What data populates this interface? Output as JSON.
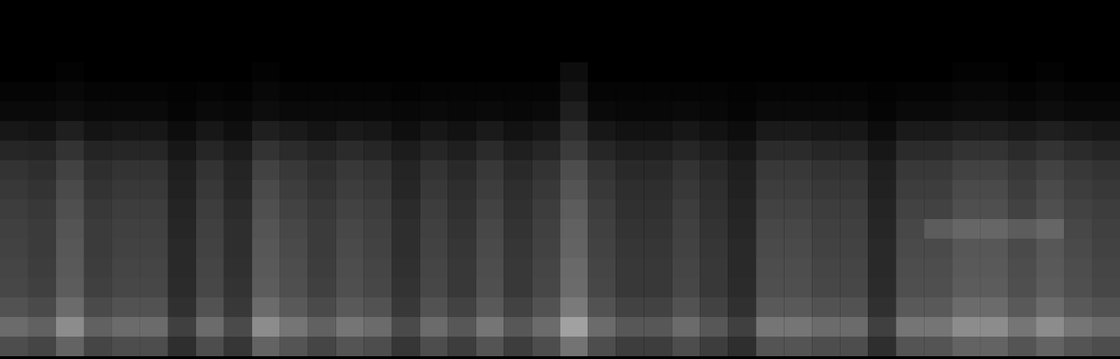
{
  "chart_data": {
    "type": "heatmap",
    "color": "#ffffff",
    "tick_labels": false,
    "zlim": [
      0,
      100
    ],
    "z": [
      [
        0,
        0,
        0,
        0,
        0,
        0,
        0,
        0,
        0,
        0,
        0,
        0,
        0,
        0,
        0,
        0,
        0,
        0,
        0,
        0,
        0,
        0,
        0,
        0,
        0,
        0,
        0,
        0,
        0,
        0,
        0,
        0,
        0,
        0,
        0,
        0,
        0,
        0,
        0,
        0
      ],
      [
        0,
        0,
        0,
        0,
        0,
        0,
        0,
        0,
        0,
        0,
        0,
        0,
        0,
        0,
        0,
        0,
        0,
        0,
        0,
        0,
        0,
        0,
        0,
        0,
        0,
        0,
        0,
        0,
        0,
        0,
        0,
        0,
        0,
        0,
        0,
        0,
        0,
        0,
        0,
        0
      ],
      [
        0,
        0,
        0,
        0,
        0,
        0,
        0,
        0,
        0,
        0,
        0,
        0,
        0,
        0,
        0,
        0,
        0,
        0,
        0,
        0,
        0,
        0,
        0,
        0,
        0,
        0,
        0,
        0,
        0,
        0,
        0,
        0,
        0,
        0,
        0,
        0,
        0,
        0,
        0,
        0
      ],
      [
        0,
        0,
        1,
        0,
        0,
        0,
        0,
        0,
        0,
        1,
        0,
        0,
        0,
        0,
        0,
        0,
        0,
        0,
        0,
        0,
        5,
        0,
        0,
        0,
        0,
        0,
        0,
        0,
        0,
        0,
        0,
        0,
        0,
        0,
        1,
        1,
        0,
        1,
        0,
        0
      ],
      [
        2,
        2,
        3,
        2,
        2,
        2,
        1,
        2,
        1,
        3,
        2,
        2,
        2,
        2,
        1,
        2,
        2,
        2,
        2,
        2,
        8,
        2,
        2,
        2,
        2,
        2,
        1,
        2,
        2,
        2,
        2,
        1,
        2,
        2,
        3,
        3,
        2,
        3,
        2,
        2
      ],
      [
        4,
        4,
        5,
        4,
        4,
        4,
        2,
        4,
        3,
        5,
        4,
        4,
        4,
        4,
        3,
        4,
        3,
        4,
        3,
        4,
        12,
        4,
        3,
        3,
        4,
        3,
        2,
        4,
        4,
        4,
        4,
        2,
        4,
        4,
        5,
        5,
        4,
        5,
        4,
        4
      ],
      [
        9,
        8,
        12,
        8,
        9,
        9,
        5,
        9,
        6,
        12,
        10,
        8,
        10,
        9,
        6,
        9,
        7,
        10,
        7,
        9,
        18,
        9,
        7,
        7,
        9,
        7,
        5,
        10,
        10,
        9,
        9,
        5,
        10,
        10,
        12,
        12,
        10,
        12,
        10,
        9
      ],
      [
        15,
        14,
        20,
        14,
        15,
        15,
        9,
        15,
        11,
        20,
        17,
        14,
        17,
        15,
        11,
        15,
        12,
        17,
        12,
        15,
        23,
        15,
        12,
        12,
        15,
        12,
        9,
        17,
        17,
        15,
        15,
        9,
        17,
        17,
        20,
        20,
        17,
        20,
        17,
        15
      ],
      [
        20,
        18,
        26,
        18,
        20,
        20,
        12,
        20,
        14,
        26,
        22,
        18,
        22,
        20,
        14,
        20,
        16,
        22,
        16,
        20,
        30,
        20,
        16,
        16,
        20,
        16,
        12,
        22,
        22,
        20,
        20,
        12,
        22,
        22,
        26,
        26,
        22,
        26,
        22,
        20
      ],
      [
        22,
        20,
        29,
        20,
        22,
        22,
        13,
        22,
        15,
        29,
        24,
        20,
        24,
        22,
        15,
        22,
        18,
        24,
        18,
        22,
        33,
        22,
        18,
        18,
        22,
        18,
        13,
        24,
        24,
        22,
        22,
        13,
        24,
        24,
        29,
        29,
        24,
        29,
        24,
        22
      ],
      [
        24,
        22,
        31,
        22,
        24,
        24,
        14,
        24,
        17,
        31,
        26,
        22,
        26,
        24,
        17,
        24,
        19,
        26,
        19,
        24,
        36,
        24,
        19,
        19,
        24,
        19,
        14,
        26,
        26,
        24,
        24,
        14,
        26,
        26,
        31,
        31,
        26,
        31,
        26,
        24
      ],
      [
        25,
        23,
        33,
        23,
        25,
        25,
        15,
        25,
        18,
        33,
        28,
        23,
        28,
        25,
        18,
        25,
        20,
        28,
        20,
        25,
        38,
        25,
        20,
        20,
        25,
        20,
        15,
        28,
        28,
        25,
        25,
        15,
        28,
        36,
        40,
        40,
        36,
        40,
        28,
        25
      ],
      [
        26,
        23,
        34,
        23,
        26,
        26,
        16,
        26,
        18,
        34,
        29,
        23,
        29,
        26,
        18,
        26,
        21,
        29,
        21,
        26,
        39,
        26,
        21,
        21,
        26,
        21,
        16,
        29,
        29,
        26,
        26,
        16,
        29,
        29,
        34,
        34,
        29,
        34,
        29,
        26
      ],
      [
        27,
        24,
        35,
        24,
        27,
        27,
        16,
        27,
        19,
        35,
        30,
        24,
        30,
        27,
        19,
        27,
        22,
        30,
        22,
        27,
        41,
        27,
        22,
        22,
        27,
        22,
        16,
        30,
        30,
        27,
        27,
        16,
        30,
        30,
        35,
        35,
        30,
        35,
        30,
        27
      ],
      [
        28,
        25,
        36,
        25,
        28,
        28,
        17,
        28,
        20,
        36,
        31,
        25,
        31,
        28,
        20,
        28,
        22,
        31,
        22,
        28,
        42,
        28,
        22,
        22,
        28,
        22,
        17,
        31,
        31,
        28,
        28,
        17,
        31,
        31,
        36,
        36,
        31,
        36,
        31,
        28
      ],
      [
        32,
        29,
        42,
        29,
        32,
        32,
        19,
        32,
        22,
        42,
        35,
        29,
        35,
        32,
        22,
        32,
        26,
        35,
        26,
        32,
        48,
        32,
        26,
        26,
        32,
        26,
        19,
        35,
        35,
        32,
        32,
        19,
        35,
        35,
        42,
        42,
        35,
        42,
        35,
        32
      ],
      [
        42,
        38,
        55,
        38,
        42,
        42,
        25,
        42,
        29,
        55,
        46,
        38,
        46,
        42,
        29,
        42,
        34,
        46,
        34,
        42,
        63,
        42,
        34,
        34,
        42,
        34,
        25,
        46,
        46,
        42,
        42,
        25,
        46,
        46,
        55,
        55,
        46,
        55,
        46,
        42
      ],
      [
        30,
        27,
        39,
        27,
        30,
        30,
        18,
        30,
        21,
        39,
        33,
        27,
        33,
        30,
        21,
        30,
        24,
        33,
        24,
        30,
        45,
        30,
        24,
        24,
        30,
        24,
        18,
        33,
        33,
        30,
        30,
        18,
        33,
        33,
        39,
        39,
        33,
        39,
        33,
        30
      ]
    ]
  }
}
